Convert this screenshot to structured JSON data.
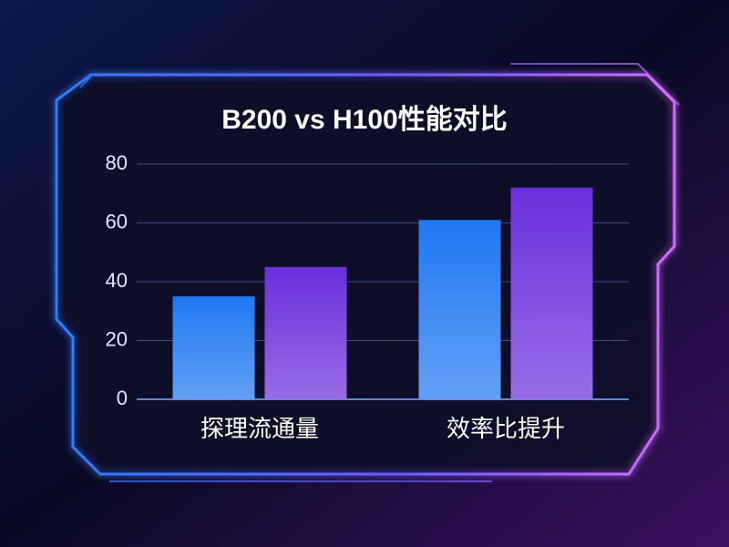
{
  "chart_data": {
    "type": "bar",
    "title": "B200 vs H100性能对比",
    "categories": [
      "探理流通量",
      "效率比提升"
    ],
    "series": [
      {
        "color": "#1f78f2",
        "values": [
          35,
          61
        ]
      },
      {
        "color": "#6a2fdc",
        "values": [
          45,
          72
        ]
      }
    ],
    "ylim": [
      0,
      80
    ],
    "yticks": [
      0,
      20,
      40,
      60,
      80
    ],
    "grid": true
  }
}
